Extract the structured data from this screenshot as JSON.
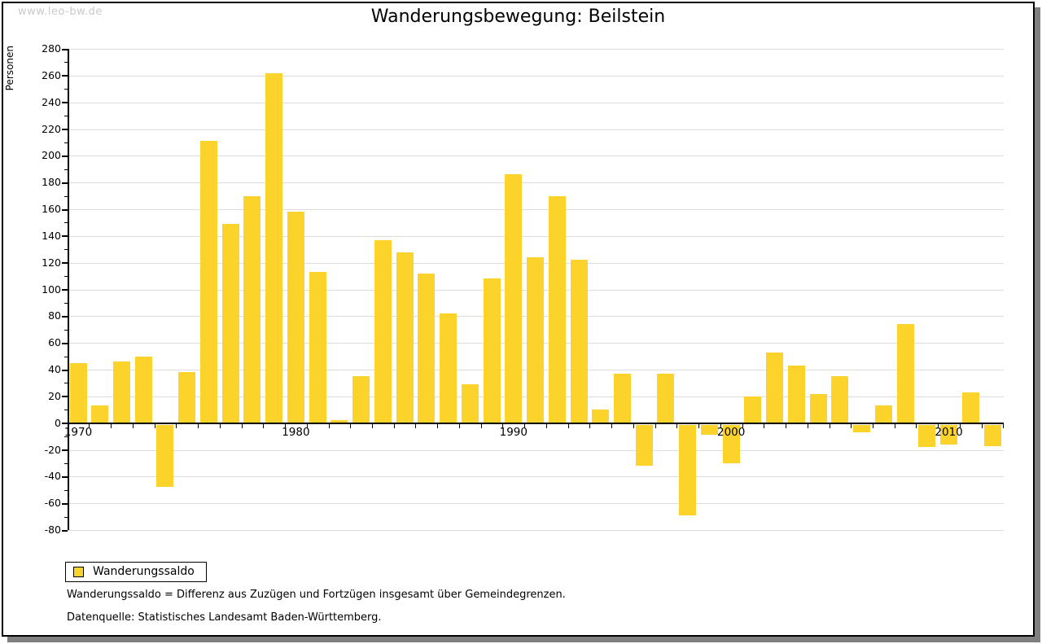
{
  "watermark": "www.leo-bw.de",
  "title": "Wanderungsbewegung: Beilstein",
  "legend": {
    "label": "Wanderungssaldo"
  },
  "footnotes": [
    "Wanderungssaldo = Differenz aus Zuzügen und Fortzügen insgesamt über Gemeindegrenzen.",
    "Datenquelle: Statistisches Landesamt Baden-Württemberg."
  ],
  "colors": {
    "bar": "#fbd32b",
    "gridline": "#dcdcdc",
    "axis": "#000000",
    "watermark": "#c9c9c9",
    "panel_shadow": "#808080"
  },
  "chart_data": {
    "type": "bar",
    "title": "Wanderungsbewegung: Beilstein",
    "xlabel": "",
    "ylabel": "Personen",
    "ylim": [
      -80,
      280
    ],
    "ytick_step": 20,
    "grid": true,
    "legend_position": "bottom-left",
    "series": [
      {
        "name": "Wanderungssaldo",
        "color": "#fbd32b",
        "values": [
          45,
          13,
          46,
          50,
          -48,
          38,
          211,
          149,
          170,
          262,
          158,
          113,
          2,
          35,
          137,
          128,
          112,
          82,
          29,
          108,
          186,
          124,
          170,
          122,
          10,
          37,
          -32,
          37,
          -69,
          -9,
          -30,
          20,
          53,
          43,
          22,
          35,
          -7,
          13,
          74,
          -18,
          -16,
          23,
          -17
        ]
      }
    ],
    "categories": [
      1970,
      1971,
      1972,
      1973,
      1974,
      1975,
      1976,
      1977,
      1978,
      1979,
      1980,
      1981,
      1982,
      1983,
      1984,
      1985,
      1986,
      1987,
      1988,
      1989,
      1990,
      1991,
      1992,
      1993,
      1994,
      1995,
      1996,
      1997,
      1998,
      1999,
      2000,
      2001,
      2002,
      2003,
      2004,
      2005,
      2006,
      2007,
      2008,
      2009,
      2010,
      2011,
      2012
    ],
    "xtick_labels": [
      1970,
      1980,
      1990,
      2000,
      2010
    ]
  }
}
